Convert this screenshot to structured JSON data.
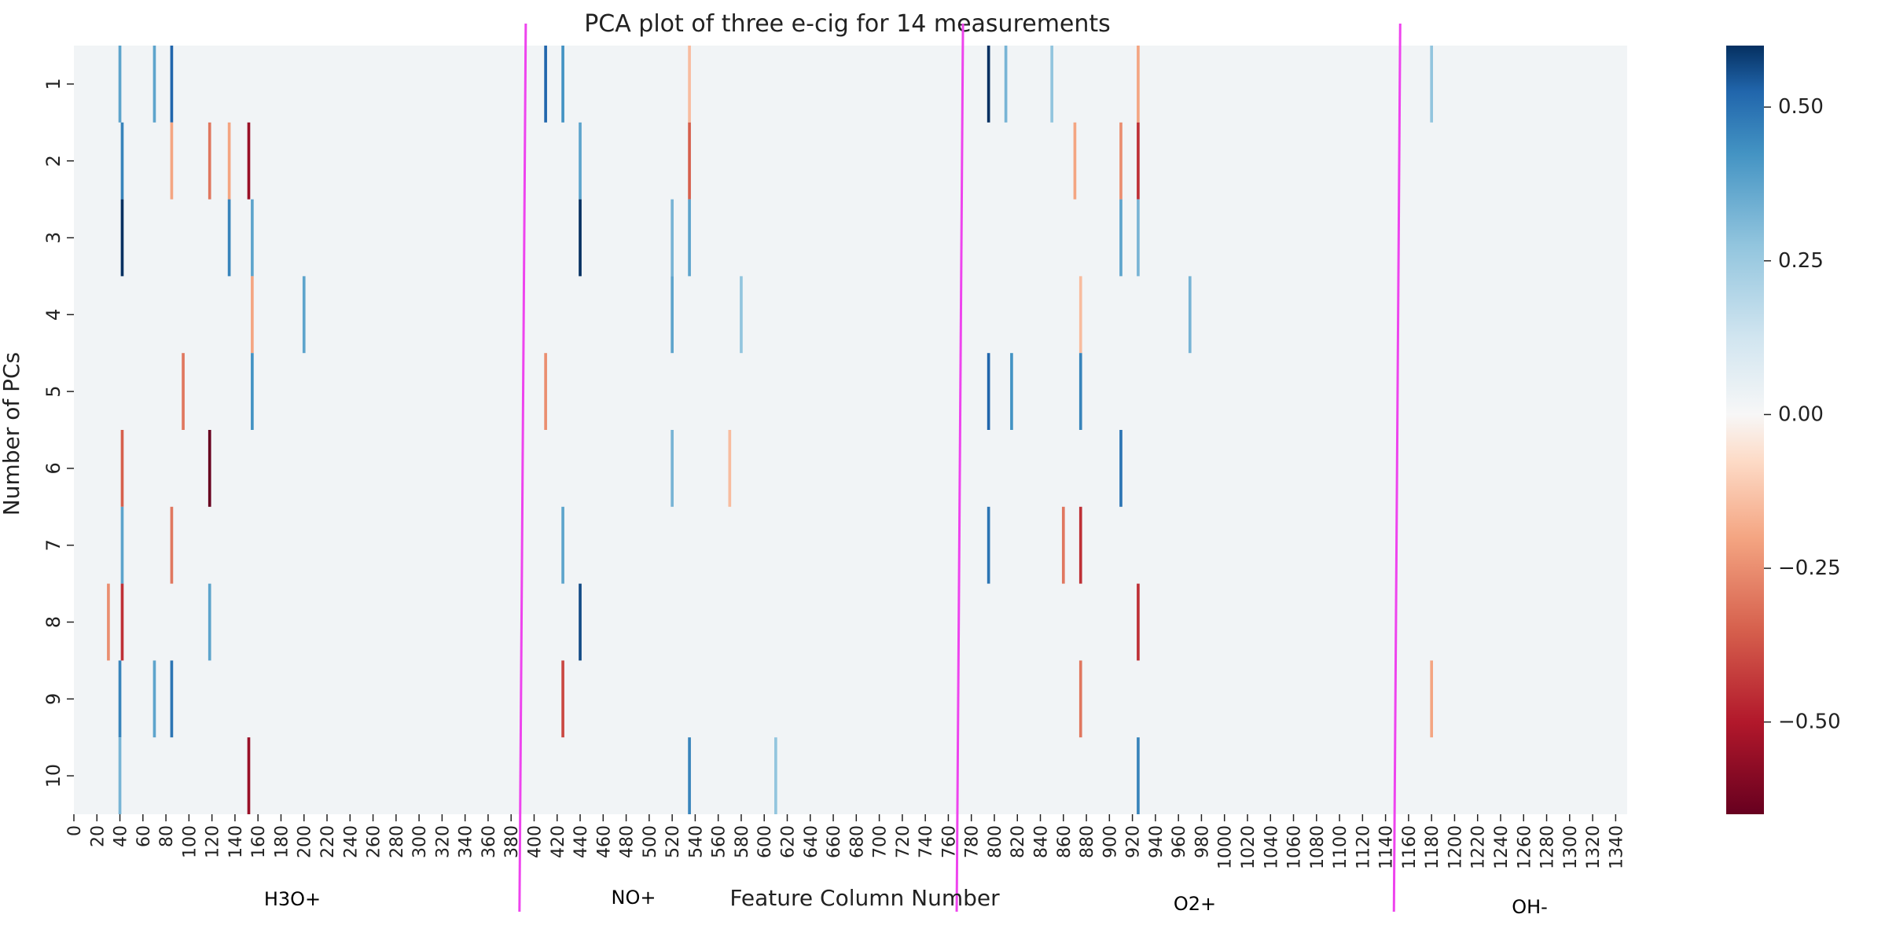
{
  "chart_data": {
    "type": "heatmap",
    "title": "PCA plot of three e-cig for 14 measurements",
    "xlabel": "Feature Column Number",
    "ylabel": "Number of PCs",
    "rows": [
      "1",
      "2",
      "3",
      "4",
      "5",
      "6",
      "7",
      "8",
      "9",
      "10"
    ],
    "x_range": [
      0,
      1350
    ],
    "x_tick_step": 20,
    "x_tick_labels": [
      "0",
      "20",
      "40",
      "60",
      "80",
      "100",
      "120",
      "140",
      "160",
      "180",
      "200",
      "220",
      "240",
      "260",
      "280",
      "300",
      "320",
      "340",
      "360",
      "380",
      "400",
      "420",
      "440",
      "460",
      "480",
      "500",
      "520",
      "540",
      "560",
      "580",
      "600",
      "620",
      "640",
      "660",
      "680",
      "700",
      "720",
      "740",
      "760",
      "780",
      "800",
      "820",
      "840",
      "860",
      "880",
      "900",
      "920",
      "940",
      "960",
      "980",
      "1000",
      "1020",
      "1040",
      "1060",
      "1080",
      "1100",
      "1120",
      "1140",
      "1160",
      "1180",
      "1200",
      "1220",
      "1240",
      "1260",
      "1280",
      "1300",
      "1320",
      "1340"
    ],
    "colorbar": {
      "colormap": "RdBu",
      "vmin": -0.65,
      "vmax": 0.6,
      "ticks": [
        0.5,
        0.25,
        0.0,
        -0.25,
        -0.5
      ],
      "tick_labels": [
        "0.50",
        "0.25",
        "0.00",
        "−0.25",
        "−0.50"
      ]
    },
    "background_value": 0.02,
    "feature_groups": [
      {
        "label": "H3O+",
        "start": 0,
        "end": 390
      },
      {
        "label": "NO+",
        "start": 390,
        "end": 770
      },
      {
        "label": "O2+",
        "start": 770,
        "end": 1150
      },
      {
        "label": "OH-",
        "start": 1150,
        "end": 1350
      }
    ],
    "boundaries": [
      390,
      770,
      1150
    ],
    "strong_cells": [
      {
        "row": 1,
        "x": 40,
        "value": 0.3
      },
      {
        "row": 1,
        "x": 70,
        "value": 0.3
      },
      {
        "row": 1,
        "x": 85,
        "value": 0.5
      },
      {
        "row": 1,
        "x": 410,
        "value": 0.5
      },
      {
        "row": 1,
        "x": 425,
        "value": 0.35
      },
      {
        "row": 1,
        "x": 535,
        "value": -0.15
      },
      {
        "row": 1,
        "x": 795,
        "value": 0.6
      },
      {
        "row": 1,
        "x": 810,
        "value": 0.25
      },
      {
        "row": 1,
        "x": 850,
        "value": 0.2
      },
      {
        "row": 1,
        "x": 925,
        "value": -0.2
      },
      {
        "row": 1,
        "x": 1180,
        "value": 0.2
      },
      {
        "row": 2,
        "x": 42,
        "value": 0.4
      },
      {
        "row": 2,
        "x": 85,
        "value": -0.2
      },
      {
        "row": 2,
        "x": 118,
        "value": -0.3
      },
      {
        "row": 2,
        "x": 135,
        "value": -0.2
      },
      {
        "row": 2,
        "x": 152,
        "value": -0.55
      },
      {
        "row": 2,
        "x": 440,
        "value": 0.3
      },
      {
        "row": 2,
        "x": 535,
        "value": -0.35
      },
      {
        "row": 2,
        "x": 870,
        "value": -0.2
      },
      {
        "row": 2,
        "x": 910,
        "value": -0.25
      },
      {
        "row": 2,
        "x": 925,
        "value": -0.45
      },
      {
        "row": 3,
        "x": 42,
        "value": 0.6
      },
      {
        "row": 3,
        "x": 135,
        "value": 0.4
      },
      {
        "row": 3,
        "x": 155,
        "value": 0.3
      },
      {
        "row": 3,
        "x": 440,
        "value": 0.6
      },
      {
        "row": 3,
        "x": 520,
        "value": 0.25
      },
      {
        "row": 3,
        "x": 535,
        "value": 0.3
      },
      {
        "row": 3,
        "x": 910,
        "value": 0.3
      },
      {
        "row": 3,
        "x": 925,
        "value": 0.25
      },
      {
        "row": 4,
        "x": 200,
        "value": 0.3
      },
      {
        "row": 4,
        "x": 155,
        "value": -0.2
      },
      {
        "row": 4,
        "x": 520,
        "value": 0.3
      },
      {
        "row": 4,
        "x": 580,
        "value": 0.2
      },
      {
        "row": 4,
        "x": 875,
        "value": -0.15
      },
      {
        "row": 4,
        "x": 970,
        "value": 0.25
      },
      {
        "row": 5,
        "x": 95,
        "value": -0.3
      },
      {
        "row": 5,
        "x": 155,
        "value": 0.35
      },
      {
        "row": 5,
        "x": 410,
        "value": -0.25
      },
      {
        "row": 5,
        "x": 795,
        "value": 0.5
      },
      {
        "row": 5,
        "x": 815,
        "value": 0.35
      },
      {
        "row": 5,
        "x": 875,
        "value": 0.4
      },
      {
        "row": 6,
        "x": 42,
        "value": -0.35
      },
      {
        "row": 6,
        "x": 118,
        "value": -0.65
      },
      {
        "row": 6,
        "x": 520,
        "value": 0.25
      },
      {
        "row": 6,
        "x": 570,
        "value": -0.15
      },
      {
        "row": 6,
        "x": 910,
        "value": 0.45
      },
      {
        "row": 7,
        "x": 42,
        "value": 0.3
      },
      {
        "row": 7,
        "x": 85,
        "value": -0.3
      },
      {
        "row": 7,
        "x": 425,
        "value": 0.3
      },
      {
        "row": 7,
        "x": 795,
        "value": 0.45
      },
      {
        "row": 7,
        "x": 860,
        "value": -0.3
      },
      {
        "row": 7,
        "x": 875,
        "value": -0.45
      },
      {
        "row": 8,
        "x": 30,
        "value": -0.25
      },
      {
        "row": 8,
        "x": 42,
        "value": -0.45
      },
      {
        "row": 8,
        "x": 118,
        "value": 0.3
      },
      {
        "row": 8,
        "x": 440,
        "value": 0.55
      },
      {
        "row": 8,
        "x": 925,
        "value": -0.45
      },
      {
        "row": 9,
        "x": 40,
        "value": 0.4
      },
      {
        "row": 9,
        "x": 70,
        "value": 0.3
      },
      {
        "row": 9,
        "x": 85,
        "value": 0.45
      },
      {
        "row": 9,
        "x": 425,
        "value": -0.4
      },
      {
        "row": 9,
        "x": 875,
        "value": -0.3
      },
      {
        "row": 9,
        "x": 1180,
        "value": -0.2
      },
      {
        "row": 10,
        "x": 40,
        "value": 0.25
      },
      {
        "row": 10,
        "x": 152,
        "value": -0.55
      },
      {
        "row": 10,
        "x": 535,
        "value": 0.4
      },
      {
        "row": 10,
        "x": 610,
        "value": 0.2
      },
      {
        "row": 10,
        "x": 925,
        "value": 0.4
      }
    ],
    "legend": "none",
    "grid": false
  }
}
